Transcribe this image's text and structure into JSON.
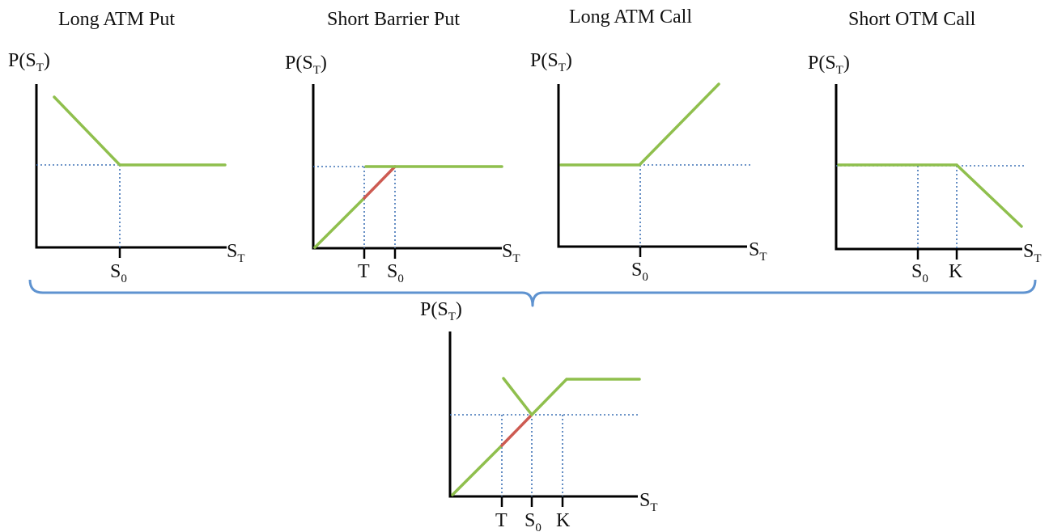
{
  "labels": {
    "payoff_axis": "P(S",
    "payoff_sub": "T",
    "payoff_close": ")",
    "price_axis": "S",
    "price_sub": "T",
    "s0": "S",
    "s0_sub": "0",
    "barrier": "T",
    "strike": "K"
  },
  "panels": [
    {
      "key": "long-atm-put",
      "title": "Long ATM Put",
      "ticks": [
        "S0"
      ]
    },
    {
      "key": "short-barrier-put",
      "title": "Short Barrier Put",
      "ticks": [
        "T",
        "S0"
      ]
    },
    {
      "key": "long-atm-call",
      "title": "Long ATM Call",
      "ticks": [
        "S0"
      ]
    },
    {
      "key": "short-otm-call",
      "title": "Short OTM Call",
      "ticks": [
        "S0",
        "K"
      ]
    },
    {
      "key": "combined",
      "title": "",
      "ticks": [
        "T",
        "S0",
        "K"
      ]
    }
  ],
  "colors": {
    "payoff_line": "#8fbf4d",
    "barrier_segment": "#cd5b52",
    "guide_lines": "#3f72b5",
    "brace": "#5f93d0",
    "axes": "#000000"
  }
}
